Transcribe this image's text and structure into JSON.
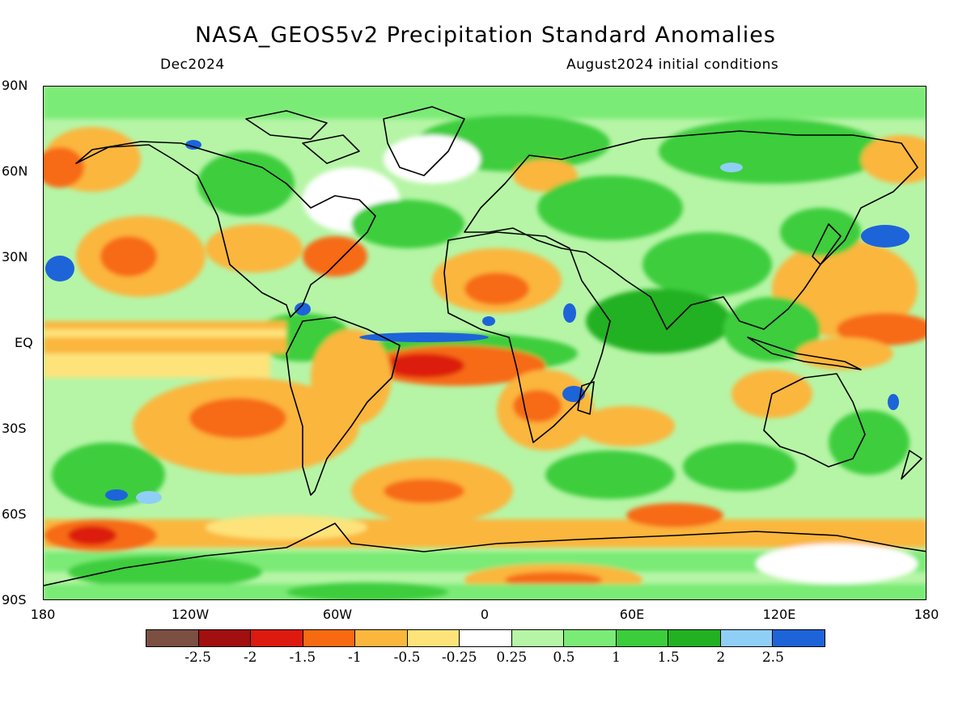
{
  "title": "NASA_GEOS5v2 Precipitation Standard Anomalies",
  "subtitle_left": "Dec2024",
  "subtitle_right": "August2024 initial conditions",
  "y_axis": {
    "ticks": [
      "90N",
      "60N",
      "30N",
      "EQ",
      "30S",
      "60S",
      "90S"
    ]
  },
  "x_axis": {
    "ticks": [
      "180",
      "120W",
      "60W",
      "0",
      "60E",
      "120E",
      "180"
    ]
  },
  "colorbar": {
    "colors": [
      "#7b5043",
      "#a10f0f",
      "#dc1a10",
      "#f76a12",
      "#fbb63e",
      "#fde37a",
      "#ffffff",
      "#b6f5a6",
      "#7aeb76",
      "#3ccd3c",
      "#22b122",
      "#8fcff6",
      "#1d64d9"
    ],
    "labels": [
      "-2.5",
      "-2",
      "-1.5",
      "-1",
      "-0.5",
      "-0.25",
      "0.25",
      "0.5",
      "1",
      "1.5",
      "2",
      "2.5"
    ]
  },
  "legend_palette": {
    "deficit": "#f76a12",
    "surplus": "#3ccd3c",
    "strong_surplus": "#1d64d9",
    "strong_deficit": "#dc1a10"
  }
}
